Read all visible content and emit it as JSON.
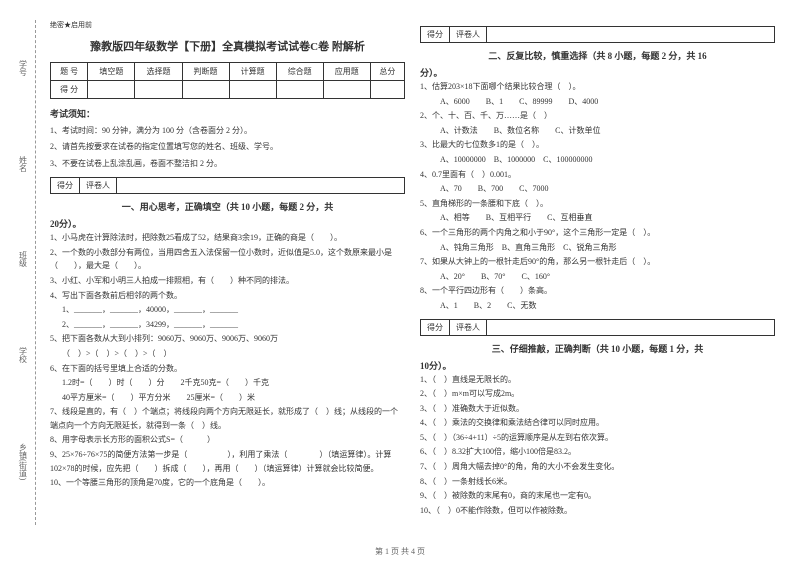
{
  "leftLabels": [
    "学号",
    "姓名",
    "班级",
    "学校",
    "乡镇(街道)"
  ],
  "headerSmall": "绝密★启用前",
  "title": "豫教版四年级数学【下册】全真模拟考试试卷C卷 附解析",
  "scoreTable": {
    "headers": [
      "题 号",
      "填空题",
      "选择题",
      "判断题",
      "计算题",
      "综合题",
      "应用题",
      "总分"
    ],
    "row2": "得 分"
  },
  "noticeTitle": "考试须知：",
  "notices": [
    "1、考试时间：90 分钟，满分为 100 分（含卷面分 2 分）。",
    "2、请首先按要求在试卷的指定位置填写您的姓名、班级、学号。",
    "3、不要在试卷上乱涂乱画，卷面不整洁扣 2 分。"
  ],
  "scorerLabel": "得分",
  "reviewerLabel": "评卷人",
  "sec1": {
    "title": "一、用心思考，正确填空（共 10 小题，每题 2 分，共",
    "cont": "20分）。"
  },
  "q1": [
    "1、小马虎在计算除法时，把除数25看成了52，结果商3余19，正确的商是（　　）。",
    "2、一个数的小数部分有两位，当用四舍五入法保留一位小数时，近似值是5.0，这个数原来最小是（　　），最大是（　　）。",
    "3、小红、小军和小明三人拍成一排照相，有（　　）种不同的排法。",
    "4、写出下面各数前后相邻的两个数。",
    "1、_______，_______，40000，_______，_______",
    "2、_______，_______，34299，_______，_______",
    "5、把下面各数从大到小排列：9060万、9060万、9006万、9060万",
    "（　）>（　）>（　）>（　）",
    "6、在下面的括号里填上合适的分数。",
    "1.2时=（　　）时（　　）分　　2千克50克=（　　）千克",
    "40平方厘米=（　　）平方分米　　25厘米=（　　）米",
    "7、线段是直的，有（　）个端点；将线段向两个方向无限延长，就形成了（　）线；从线段的一个端点向一个方向无限延长，就得到一条（　）线。",
    "8、用字母表示长方形的面积公式S=（　　　）",
    "9、25×76÷76×75的简便方法第一步是（　　　　　），利用了乘法（　　　　）（填运算律）。计算102×78的时候，应先把（　　）拆成（　　），再用（　　）（填运算律）计算就会比较简便。",
    "10、一个等腰三角形的顶角是70度，它的一个底角是（　　）。"
  ],
  "sec2": {
    "title": "二、反复比较，慎重选择（共 8 小题，每题 2 分，共 16",
    "cont": "分）。"
  },
  "q2": [
    "1、估算203×18下面哪个结果比较合理（　）。",
    "　A、6000　　B、1　　C、89999　　D、4000",
    "2、个、十、百、千、万……是（　）",
    "　A、计数法　　B、数位名称　　C、计数单位",
    "3、比最大的七位数多1的是（　）。",
    "　A、10000000　B、1000000　C、100000000",
    "4、0.7里面有（　）0.001。",
    "　A、70　　B、700　　C、7000",
    "5、直角梯形的一条腰和下底（　）。",
    "　A、相等　　B、互相平行　　C、互相垂直",
    "6、一个三角形的两个内角之和小于90°，这个三角形一定是（　）。",
    "　A、钝角三角形　B、直角三角形　C、锐角三角形",
    "7、如果从大钟上的一根针走后90°的角，那么另一根针走后（　）。",
    "　A、20°　　B、70°　　C、160°",
    "8、一个平行四边形有（　　）条高。",
    "　A、1　　B、2　　C、无数"
  ],
  "sec3": {
    "title": "三、仔细推敲，正确判断（共 10 小题，每题 1 分，共",
    "cont": "10分）。"
  },
  "q3": [
    "1、（　）直线是无限长的。",
    "2、（　）m×m可以写成2m。",
    "3、（　）准确数大于近似数。",
    "4、（　）乘法的交换律和乘法结合律可以同时应用。",
    "5、（　）（36÷4+11）÷5的运算顺序是从左到右依次算。",
    "6、（　）8.32扩大100倍，缩小100倍是83.2。",
    "7、（　）周角大幅去掉0°的角，角的大小不会发生变化。",
    "8、（　）一条射线长6米。",
    "9、（　）被除数的末尾有0，商的末尾也一定有0。",
    "10、（　）0不能作除数，但可以作被除数。"
  ],
  "footer": "第 1 页 共 4 页"
}
